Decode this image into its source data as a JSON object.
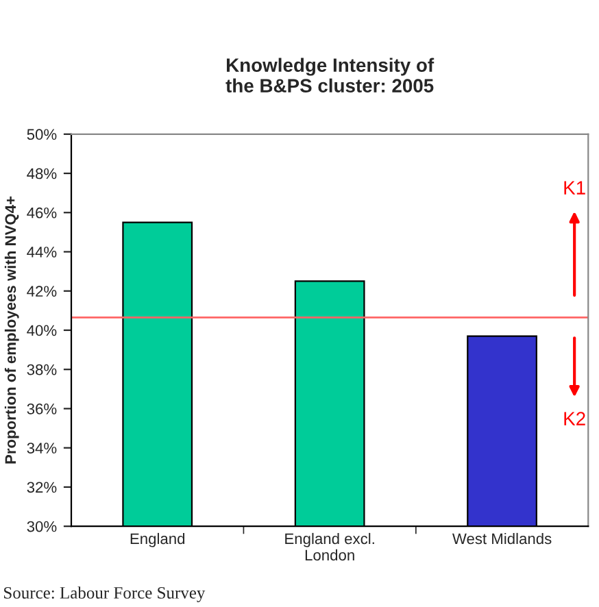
{
  "chart_data": {
    "type": "bar",
    "title": "Knowledge Intensity of\nthe B&PS cluster: 2005",
    "ylabel": "Proportion of employees with NVQ4+",
    "categories": [
      "England",
      "England excl.\nLondon",
      "West Midlands"
    ],
    "values": [
      45.5,
      42.5,
      39.7
    ],
    "colors": [
      "#00cc99",
      "#00cc99",
      "#3333cc"
    ],
    "ylim": [
      30,
      50
    ],
    "yticks": [
      {
        "value": 30,
        "label": "30%"
      },
      {
        "value": 32,
        "label": "32%"
      },
      {
        "value": 34,
        "label": "34%"
      },
      {
        "value": 36,
        "label": "36%"
      },
      {
        "value": 38,
        "label": "38%"
      },
      {
        "value": 40,
        "label": "40%"
      },
      {
        "value": 42,
        "label": "42%"
      },
      {
        "value": 44,
        "label": "44%"
      },
      {
        "value": 46,
        "label": "46%"
      },
      {
        "value": 48,
        "label": "48%"
      },
      {
        "value": 50,
        "label": "50%"
      }
    ],
    "ref_lines": [
      {
        "axis": "y",
        "value": 40.65,
        "color": "#ff6666"
      }
    ],
    "annotations": [
      "K1",
      "K2",
      "Source: Labour Force Survey"
    ],
    "grid": false
  }
}
